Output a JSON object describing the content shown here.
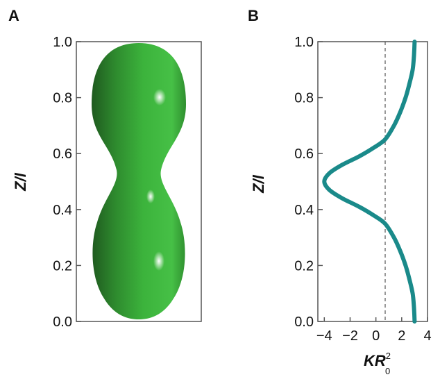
{
  "panels": {
    "a": "A",
    "b": "B"
  },
  "chart_data": [
    {
      "type": "line",
      "panel": "A",
      "ylabel": "Z/l",
      "yticks": [
        "0.0",
        "0.2",
        "0.4",
        "0.6",
        "0.8",
        "1.0"
      ],
      "ylim": [
        0,
        1
      ],
      "grid": false,
      "colors": {
        "body": "#3cb33c",
        "shadow": "#1f5a1f",
        "highlight": "#e8ffe8"
      }
    },
    {
      "type": "line",
      "panel": "B",
      "xlabel_main": "KR",
      "xlabel_sup": "2",
      "xlabel_sub": "0",
      "ylabel": "Z/l",
      "xticks": [
        "−4",
        "−2",
        "0",
        "2",
        "4"
      ],
      "yticks": [
        "0.0",
        "0.2",
        "0.4",
        "0.6",
        "0.8",
        "1.0"
      ],
      "xlim": [
        -4.5,
        4
      ],
      "ylim": [
        0,
        1
      ],
      "grid": false,
      "reference_line": {
        "x": 0,
        "style": "dashed"
      },
      "series": [
        {
          "color": "#1a8a8a",
          "points": [
            [
              3.0,
              0.0
            ],
            [
              2.95,
              0.05
            ],
            [
              2.85,
              0.1
            ],
            [
              2.6,
              0.15
            ],
            [
              2.3,
              0.2
            ],
            [
              1.9,
              0.25
            ],
            [
              1.4,
              0.3
            ],
            [
              0.7,
              0.35
            ],
            [
              -0.2,
              0.38
            ],
            [
              -1.3,
              0.41
            ],
            [
              -2.6,
              0.44
            ],
            [
              -3.6,
              0.47
            ],
            [
              -4.0,
              0.5
            ],
            [
              -3.6,
              0.53
            ],
            [
              -2.6,
              0.56
            ],
            [
              -1.3,
              0.59
            ],
            [
              -0.2,
              0.62
            ],
            [
              0.7,
              0.65
            ],
            [
              1.4,
              0.7
            ],
            [
              1.9,
              0.75
            ],
            [
              2.3,
              0.8
            ],
            [
              2.6,
              0.85
            ],
            [
              2.85,
              0.9
            ],
            [
              2.95,
              0.95
            ],
            [
              3.0,
              1.0
            ]
          ]
        }
      ]
    }
  ]
}
